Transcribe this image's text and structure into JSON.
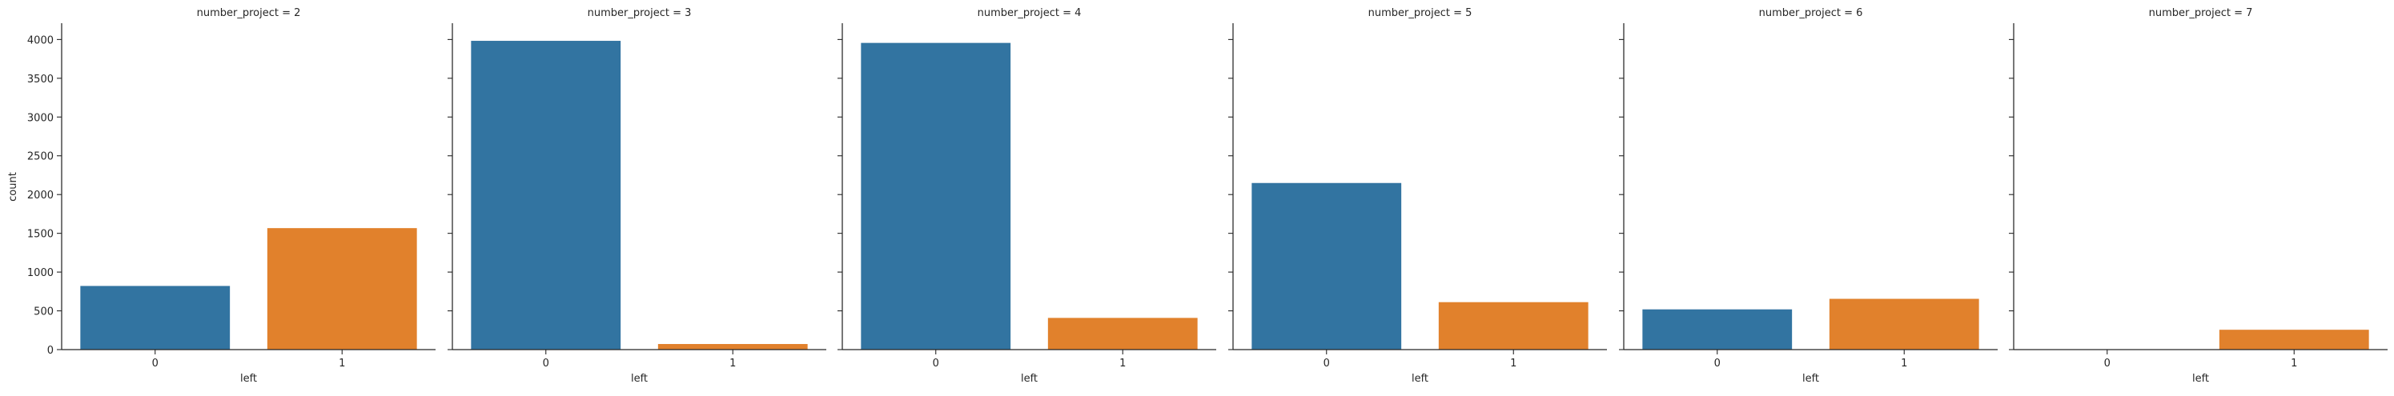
{
  "chart_data": {
    "type": "bar",
    "facet_titles": [
      "number_project = 2",
      "number_project = 3",
      "number_project = 4",
      "number_project = 5",
      "number_project = 6",
      "number_project = 7"
    ],
    "categories": [
      "0",
      "1"
    ],
    "xlabel": "left",
    "ylabel": "count",
    "ylim": [
      0,
      4200
    ],
    "yticks": [
      0,
      500,
      1000,
      1500,
      2000,
      2500,
      3000,
      3500,
      4000
    ],
    "bar_colors": [
      "#3274a1",
      "#e1812c"
    ],
    "panels": [
      {
        "values": [
          821,
          1567
        ]
      },
      {
        "values": [
          3983,
          72
        ]
      },
      {
        "values": [
          3956,
          409
        ]
      },
      {
        "values": [
          2149,
          612
        ]
      },
      {
        "values": [
          519,
          655
        ]
      },
      {
        "values": [
          0,
          256
        ]
      }
    ],
    "grid": false,
    "sharey": true
  }
}
